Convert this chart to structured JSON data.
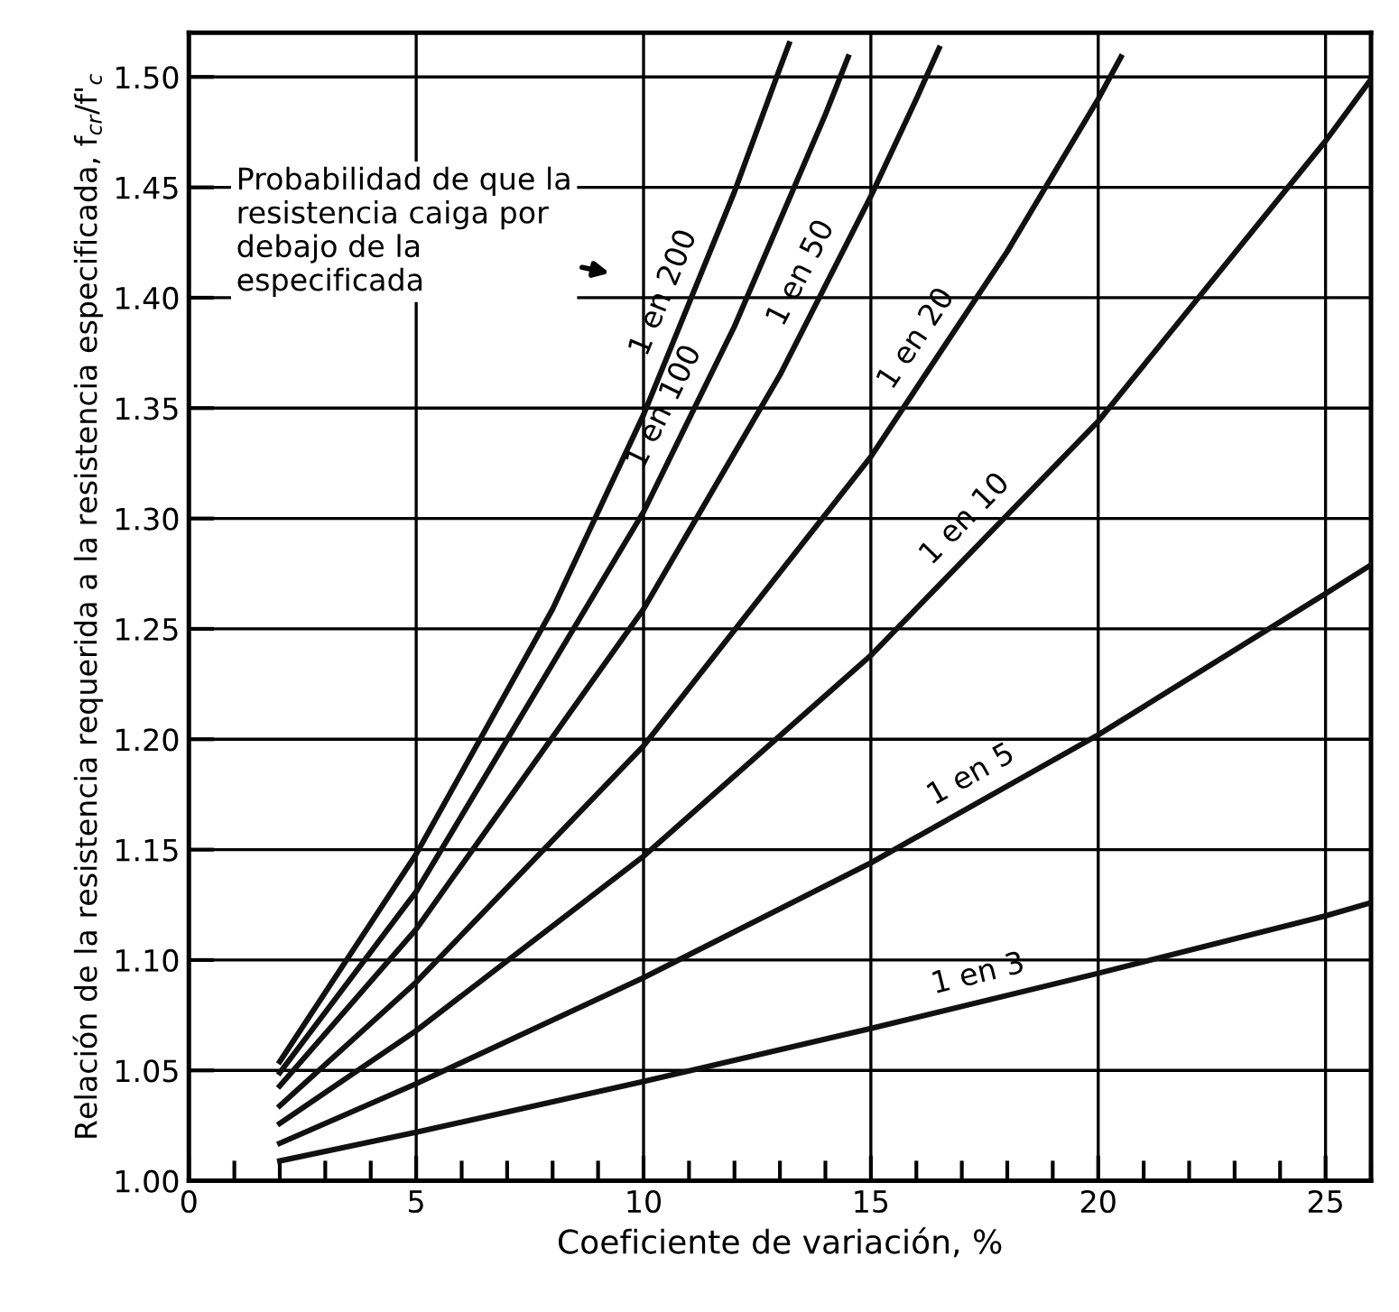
{
  "chart_data": {
    "type": "line",
    "xlabel": "Coeficiente de variación, %",
    "ylabel": "Relación de la resistencia requerida a la resistencia especificada, f$_{cr}$/f'$_{c}$",
    "annotations": [
      "Probabilidad de que la\nresistencia caiga por\ndebajo de la\nespecificada"
    ],
    "xlim": [
      0,
      26
    ],
    "xticks": [
      0,
      5,
      10,
      15,
      20,
      25
    ],
    "ylim": [
      1.0,
      1.52
    ],
    "yticks": [
      {
        "value": 1.0,
        "label": "1.00"
      },
      1.05,
      {
        "value": 1.1,
        "label": "1.10"
      },
      1.15,
      {
        "value": 1.2,
        "label": "1.20"
      },
      1.25,
      {
        "value": 1.3,
        "label": "1.30"
      },
      1.35,
      {
        "value": 1.4,
        "label": "1.40"
      },
      1.45,
      {
        "value": 1.5,
        "label": "1.50"
      }
    ],
    "grid": true,
    "line_style": "solid",
    "marker": "none",
    "series": [
      {
        "name": "1 en 200",
        "color": "#111111",
        "x": [
          2,
          5,
          8,
          10,
          12,
          13,
          13.2
        ],
        "values": [
          1.054,
          1.148,
          1.259,
          1.347,
          1.448,
          1.504,
          1.515
        ]
      },
      {
        "name": "1 en 100",
        "color": "#111111",
        "x": [
          2,
          5,
          10,
          12,
          14,
          14.5
        ],
        "values": [
          1.049,
          1.131,
          1.303,
          1.387,
          1.483,
          1.509
        ]
      },
      {
        "name": "1 en 50",
        "color": "#111111",
        "x": [
          2,
          5,
          10,
          13,
          15,
          16,
          16.5
        ],
        "values": [
          1.043,
          1.114,
          1.259,
          1.365,
          1.446,
          1.49,
          1.513
        ]
      },
      {
        "name": "1 en 20",
        "color": "#111111",
        "x": [
          2,
          5,
          10,
          15,
          18,
          20,
          20.5
        ],
        "values": [
          1.034,
          1.09,
          1.197,
          1.328,
          1.421,
          1.49,
          1.509
        ]
      },
      {
        "name": "1 en 10",
        "color": "#111111",
        "x": [
          2,
          5,
          10,
          15,
          20,
          25,
          26
        ],
        "values": [
          1.026,
          1.068,
          1.147,
          1.238,
          1.344,
          1.471,
          1.499
        ]
      },
      {
        "name": "1 en 5",
        "color": "#111111",
        "x": [
          2,
          5,
          10,
          15,
          20,
          25,
          26
        ],
        "values": [
          1.017,
          1.044,
          1.092,
          1.144,
          1.202,
          1.266,
          1.279
        ]
      },
      {
        "name": "1 en 3",
        "color": "#111111",
        "x": [
          2,
          5,
          10,
          15,
          20,
          25,
          26
        ],
        "values": [
          1.009,
          1.022,
          1.045,
          1.069,
          1.094,
          1.12,
          1.126
        ]
      }
    ]
  }
}
